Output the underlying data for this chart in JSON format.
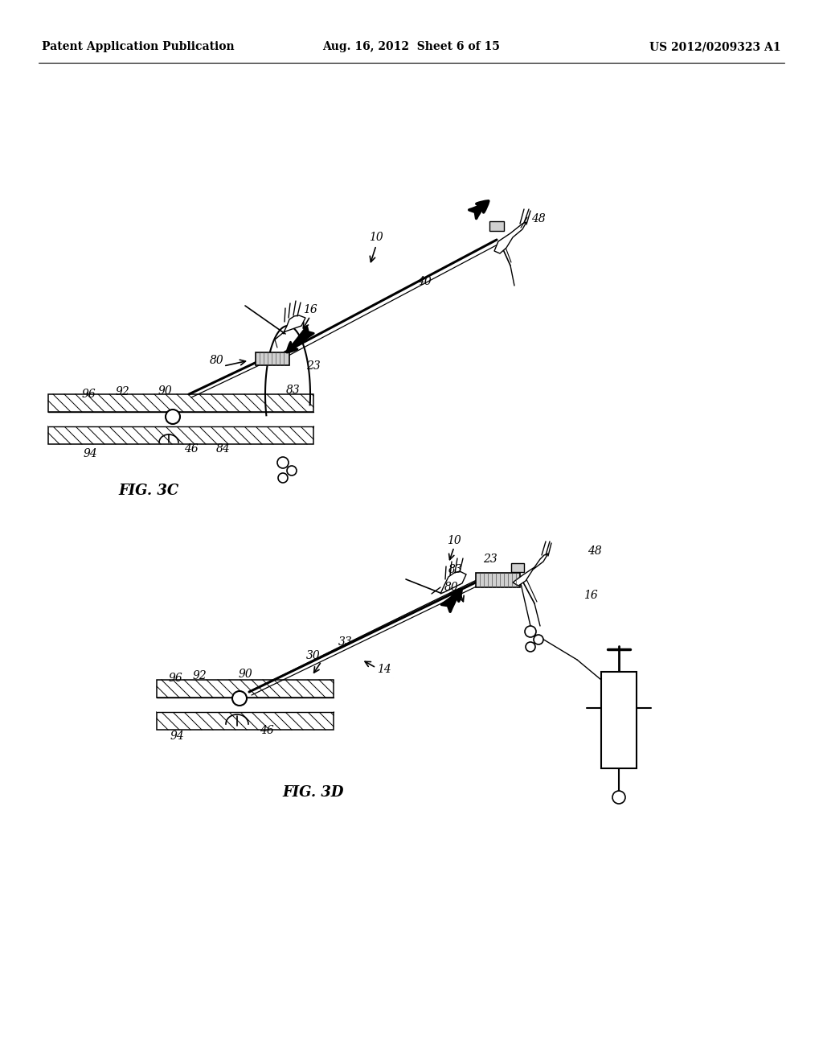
{
  "background_color": "#ffffff",
  "header_left": "Patent Application Publication",
  "header_center": "Aug. 16, 2012  Sheet 6 of 15",
  "header_right": "US 2012/0209323 A1",
  "fig3c_label": "FIG. 3C",
  "fig3d_label": "FIG. 3D",
  "line_color": "#000000",
  "label_fontsize": 10,
  "header_fontsize": 10
}
